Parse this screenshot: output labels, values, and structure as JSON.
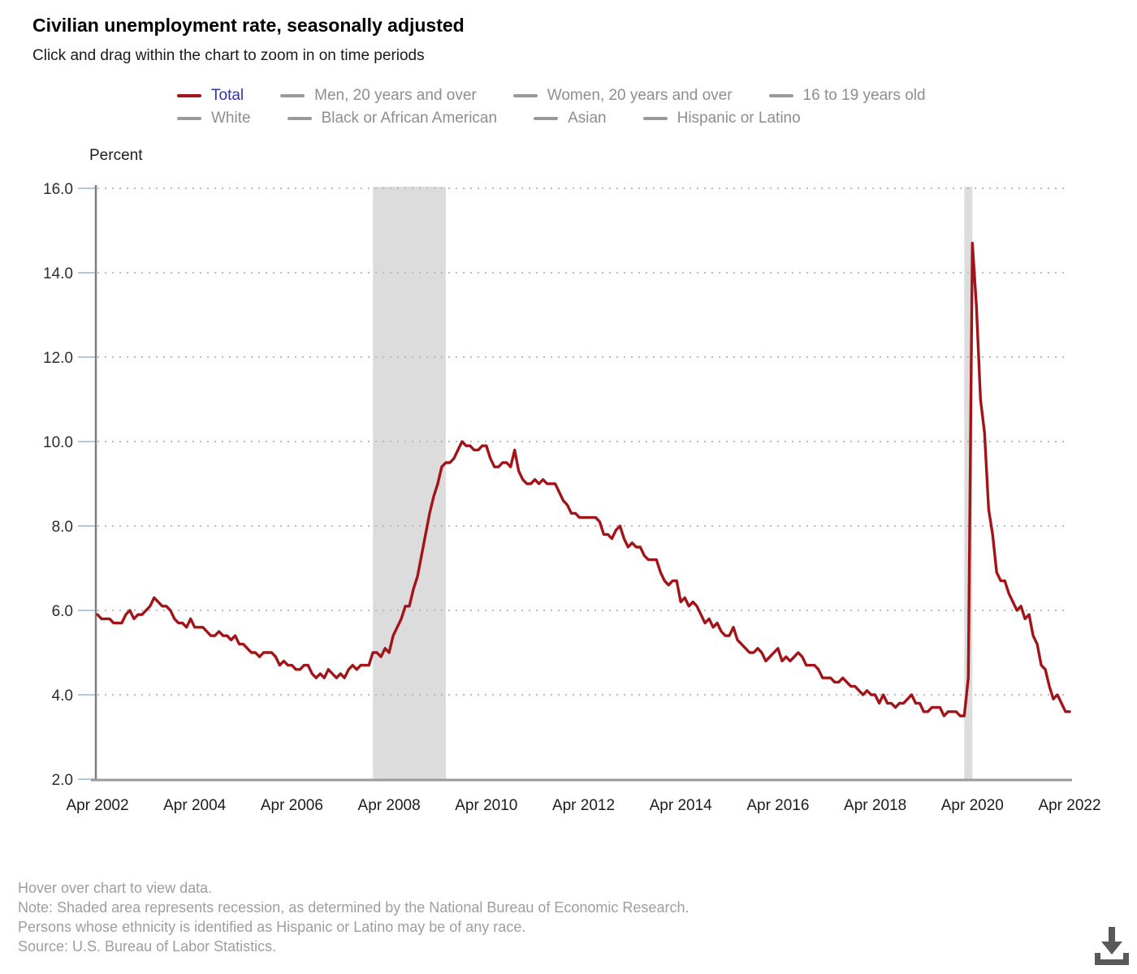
{
  "page": {
    "title": "Civilian unemployment rate, seasonally adjusted",
    "subtitle": "Click and drag within the chart to zoom in on time periods"
  },
  "legend": {
    "active_dash_color": "#a11419",
    "active_text_color": "#3232aa",
    "inactive_dash_color": "#9a9a9a",
    "inactive_text_color": "#8e8e8e",
    "rows": [
      [
        {
          "label": "Total",
          "active": true
        },
        {
          "label": "Men, 20 years and over",
          "active": false
        },
        {
          "label": "Women, 20 years and over",
          "active": false
        },
        {
          "label": "16 to 19 years old",
          "active": false
        }
      ],
      [
        {
          "label": "White",
          "active": false
        },
        {
          "label": "Black or African American",
          "active": false
        },
        {
          "label": "Asian",
          "active": false
        },
        {
          "label": "Hispanic or Latino",
          "active": false
        }
      ]
    ]
  },
  "chart_data": {
    "type": "line",
    "title": "Civilian unemployment rate, seasonally adjusted",
    "ylabel": "Percent",
    "ylim": [
      2.0,
      16.0
    ],
    "ytick_labels": [
      "16.0",
      "14.0",
      "12.0",
      "10.0",
      "8.0",
      "6.0",
      "4.0",
      "2.0"
    ],
    "ytick_values": [
      16.0,
      14.0,
      12.0,
      10.0,
      8.0,
      6.0,
      4.0,
      2.0
    ],
    "xtick_labels": [
      "Apr 2002",
      "Apr 2004",
      "Apr 2006",
      "Apr 2008",
      "Apr 2010",
      "Apr 2012",
      "Apr 2014",
      "Apr 2016",
      "Apr 2018",
      "Apr 2020",
      "Apr 2022"
    ],
    "xtick_month_indices": [
      0,
      24,
      48,
      72,
      96,
      120,
      144,
      168,
      192,
      216,
      240
    ],
    "x_start": "Apr 2002",
    "x_end": "Apr 2022",
    "frequency": "monthly",
    "grid": "dotted horizontal",
    "recession_band_color": "#dcdcdc",
    "recessions": [
      {
        "start": "Dec 2007",
        "end": "Jun 2009",
        "start_index": 68,
        "end_index": 86
      },
      {
        "start": "Feb 2020",
        "end": "Apr 2020",
        "start_index": 214,
        "end_index": 216
      }
    ],
    "series": [
      {
        "name": "Total",
        "color": "#a11419",
        "values": [
          5.9,
          5.8,
          5.8,
          5.8,
          5.7,
          5.7,
          5.7,
          5.9,
          6.0,
          5.8,
          5.9,
          5.9,
          6.0,
          6.1,
          6.3,
          6.2,
          6.1,
          6.1,
          6.0,
          5.8,
          5.7,
          5.7,
          5.6,
          5.8,
          5.6,
          5.6,
          5.6,
          5.5,
          5.4,
          5.4,
          5.5,
          5.4,
          5.4,
          5.3,
          5.4,
          5.2,
          5.2,
          5.1,
          5.0,
          5.0,
          4.9,
          5.0,
          5.0,
          5.0,
          4.9,
          4.7,
          4.8,
          4.7,
          4.7,
          4.6,
          4.6,
          4.7,
          4.7,
          4.5,
          4.4,
          4.5,
          4.4,
          4.6,
          4.5,
          4.4,
          4.5,
          4.4,
          4.6,
          4.7,
          4.6,
          4.7,
          4.7,
          4.7,
          5.0,
          5.0,
          4.9,
          5.1,
          5.0,
          5.4,
          5.6,
          5.8,
          6.1,
          6.1,
          6.5,
          6.8,
          7.3,
          7.8,
          8.3,
          8.7,
          9.0,
          9.4,
          9.5,
          9.5,
          9.6,
          9.8,
          10.0,
          9.9,
          9.9,
          9.8,
          9.8,
          9.9,
          9.9,
          9.6,
          9.4,
          9.4,
          9.5,
          9.5,
          9.4,
          9.8,
          9.3,
          9.1,
          9.0,
          9.0,
          9.1,
          9.0,
          9.1,
          9.0,
          9.0,
          9.0,
          8.8,
          8.6,
          8.5,
          8.3,
          8.3,
          8.2,
          8.2,
          8.2,
          8.2,
          8.2,
          8.1,
          7.8,
          7.8,
          7.7,
          7.9,
          8.0,
          7.7,
          7.5,
          7.6,
          7.5,
          7.5,
          7.3,
          7.2,
          7.2,
          7.2,
          6.9,
          6.7,
          6.6,
          6.7,
          6.7,
          6.2,
          6.3,
          6.1,
          6.2,
          6.1,
          5.9,
          5.7,
          5.8,
          5.6,
          5.7,
          5.5,
          5.4,
          5.4,
          5.6,
          5.3,
          5.2,
          5.1,
          5.0,
          5.0,
          5.1,
          5.0,
          4.8,
          4.9,
          5.0,
          5.1,
          4.8,
          4.9,
          4.8,
          4.9,
          5.0,
          4.9,
          4.7,
          4.7,
          4.7,
          4.6,
          4.4,
          4.4,
          4.4,
          4.3,
          4.3,
          4.4,
          4.3,
          4.2,
          4.2,
          4.1,
          4.0,
          4.1,
          4.0,
          4.0,
          3.8,
          4.0,
          3.8,
          3.8,
          3.7,
          3.8,
          3.8,
          3.9,
          4.0,
          3.8,
          3.8,
          3.6,
          3.6,
          3.7,
          3.7,
          3.7,
          3.5,
          3.6,
          3.6,
          3.6,
          3.5,
          3.5,
          4.4,
          14.7,
          13.2,
          11.0,
          10.2,
          8.4,
          7.8,
          6.9,
          6.7,
          6.7,
          6.4,
          6.2,
          6.0,
          6.1,
          5.8,
          5.9,
          5.4,
          5.2,
          4.7,
          4.6,
          4.2,
          3.9,
          4.0,
          3.8,
          3.6,
          3.6
        ]
      }
    ],
    "axis_color": "#8a8a8a",
    "grid_color": "#bbbbbb",
    "tick_mark_color": "#b7c9e2",
    "tick_label_color": "#2d2d2d"
  },
  "footer": {
    "lines": [
      "Hover over chart to view data.",
      "Note: Shaded area represents recession, as determined by the National Bureau of Economic Research.",
      "Persons whose ethnicity is identified as Hispanic or Latino may be of any race.",
      "Source: U.S. Bureau of Labor Statistics."
    ]
  },
  "icons": {
    "download": "download-arrow-with-tray"
  }
}
